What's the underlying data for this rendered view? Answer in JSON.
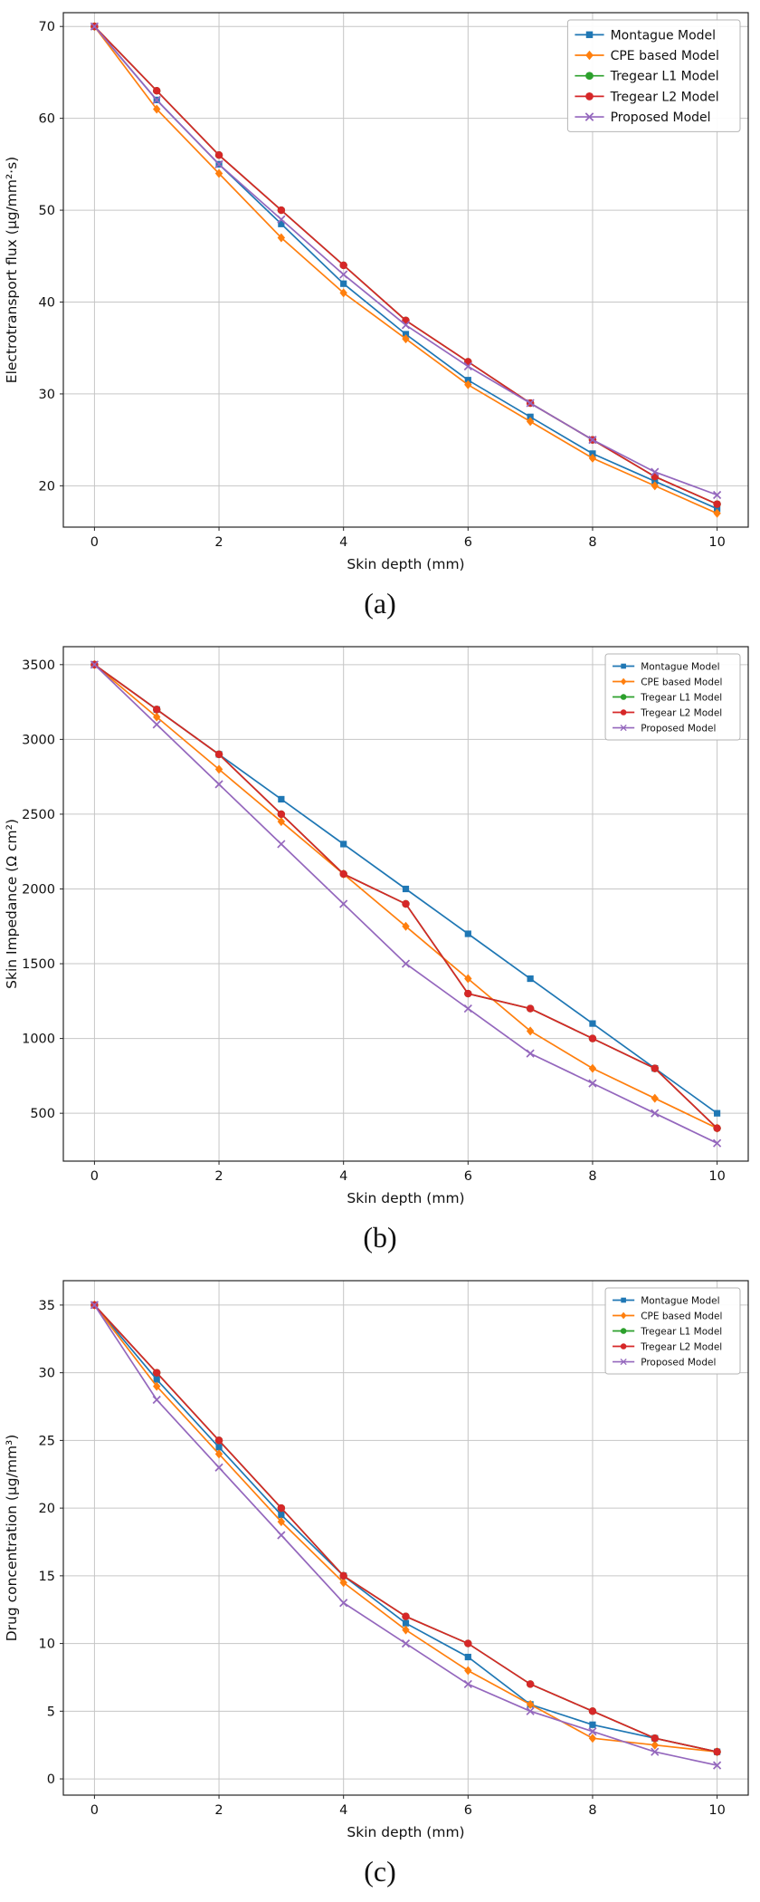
{
  "page": {
    "background": "#ffffff",
    "text_color": "#111111",
    "grid_color": "#c6c6c6",
    "spine_color": "#262626",
    "legend_border_color": "#b5b5b5"
  },
  "chart_data": [
    {
      "id": "a",
      "type": "line",
      "caption": "(a)",
      "xlabel": "Skin depth (mm)",
      "ylabel": "Electrotransport flux (µg/mm²·s)",
      "x": [
        0,
        1,
        2,
        3,
        4,
        5,
        6,
        7,
        8,
        9,
        10
      ],
      "xticks": [
        0,
        2,
        4,
        6,
        8,
        10
      ],
      "yticks": [
        20,
        30,
        40,
        50,
        60,
        70
      ],
      "xlim": [
        -0.5,
        10.5
      ],
      "ylim": [
        15.5,
        71.5
      ],
      "grid": true,
      "legend_position": "top-right",
      "legend_fontsize": 14,
      "series": [
        {
          "name": "Montague Model",
          "color": "#1f77b4",
          "marker": "square",
          "values": [
            70,
            62,
            55,
            48.5,
            42,
            36.5,
            31.5,
            27.5,
            23.5,
            20.5,
            17.5
          ]
        },
        {
          "name": "CPE based Model",
          "color": "#ff7f0e",
          "marker": "diamond",
          "values": [
            70,
            61,
            54,
            47,
            41,
            36,
            31,
            27,
            23,
            20,
            17
          ]
        },
        {
          "name": "Tregear L1 Model",
          "color": "#2ca02c",
          "marker": "circle",
          "values": [
            70,
            63,
            56,
            50,
            44,
            38,
            33.5,
            29,
            25,
            21,
            18
          ]
        },
        {
          "name": "Tregear L2 Model",
          "color": "#d62728",
          "marker": "circle",
          "values": [
            70,
            63,
            56,
            50,
            44,
            38,
            33.5,
            29,
            25,
            21,
            18
          ]
        },
        {
          "name": "Proposed Model",
          "color": "#9467bd",
          "marker": "x",
          "values": [
            70,
            62,
            55,
            49,
            43,
            37.5,
            33,
            29,
            25,
            21.5,
            19
          ]
        }
      ]
    },
    {
      "id": "b",
      "type": "line",
      "caption": "(b)",
      "xlabel": "Skin depth (mm)",
      "ylabel": "Skin Impedance (Ω cm²)",
      "x": [
        0,
        1,
        2,
        3,
        4,
        5,
        6,
        7,
        8,
        9,
        10
      ],
      "xticks": [
        0,
        2,
        4,
        6,
        8,
        10
      ],
      "yticks": [
        500,
        1000,
        1500,
        2000,
        2500,
        3000,
        3500
      ],
      "xlim": [
        -0.5,
        10.5
      ],
      "ylim": [
        180,
        3620
      ],
      "grid": true,
      "legend_position": "top-right",
      "legend_fontsize": 10.5,
      "series": [
        {
          "name": "Montague Model",
          "color": "#1f77b4",
          "marker": "square",
          "values": [
            3500,
            3200,
            2900,
            2600,
            2300,
            2000,
            1700,
            1400,
            1100,
            800,
            500
          ]
        },
        {
          "name": "CPE based Model",
          "color": "#ff7f0e",
          "marker": "diamond",
          "values": [
            3500,
            3150,
            2800,
            2450,
            2100,
            1750,
            1400,
            1050,
            800,
            600,
            400
          ]
        },
        {
          "name": "Tregear L1 Model",
          "color": "#2ca02c",
          "marker": "circle",
          "values": [
            3500,
            3200,
            2900,
            2500,
            2100,
            1900,
            1300,
            1200,
            1000,
            800,
            400
          ]
        },
        {
          "name": "Tregear L2 Model",
          "color": "#d62728",
          "marker": "circle",
          "values": [
            3500,
            3200,
            2900,
            2500,
            2100,
            1900,
            1300,
            1200,
            1000,
            800,
            400
          ]
        },
        {
          "name": "Proposed Model",
          "color": "#9467bd",
          "marker": "x",
          "values": [
            3500,
            3100,
            2700,
            2300,
            1900,
            1500,
            1200,
            900,
            700,
            500,
            300
          ]
        }
      ]
    },
    {
      "id": "c",
      "type": "line",
      "caption": "(c)",
      "xlabel": "Skin depth (mm)",
      "ylabel": "Drug concentration (µg/mm³)",
      "x": [
        0,
        1,
        2,
        3,
        4,
        5,
        6,
        7,
        8,
        9,
        10
      ],
      "xticks": [
        0,
        2,
        4,
        6,
        8,
        10
      ],
      "yticks": [
        0,
        5,
        10,
        15,
        20,
        25,
        30,
        35
      ],
      "xlim": [
        -0.5,
        10.5
      ],
      "ylim": [
        -1.2,
        36.8
      ],
      "grid": true,
      "legend_position": "top-right",
      "legend_fontsize": 10.5,
      "series": [
        {
          "name": "Montague Model",
          "color": "#1f77b4",
          "marker": "square",
          "values": [
            35,
            29.5,
            24.5,
            19.5,
            15,
            11.5,
            9,
            5.5,
            4,
            3,
            2
          ]
        },
        {
          "name": "CPE based Model",
          "color": "#ff7f0e",
          "marker": "diamond",
          "values": [
            35,
            29,
            24,
            19,
            14.5,
            11,
            8,
            5.5,
            3,
            2.5,
            2
          ]
        },
        {
          "name": "Tregear L1 Model",
          "color": "#2ca02c",
          "marker": "circle",
          "values": [
            35,
            30,
            25,
            20,
            15,
            12,
            10,
            7,
            5,
            3,
            2
          ]
        },
        {
          "name": "Tregear L2 Model",
          "color": "#d62728",
          "marker": "circle",
          "values": [
            35,
            30,
            25,
            20,
            15,
            12,
            10,
            7,
            5,
            3,
            2
          ]
        },
        {
          "name": "Proposed Model",
          "color": "#9467bd",
          "marker": "x",
          "values": [
            35,
            28,
            23,
            18,
            13,
            10,
            7,
            5,
            3.5,
            2,
            1
          ]
        }
      ]
    }
  ]
}
